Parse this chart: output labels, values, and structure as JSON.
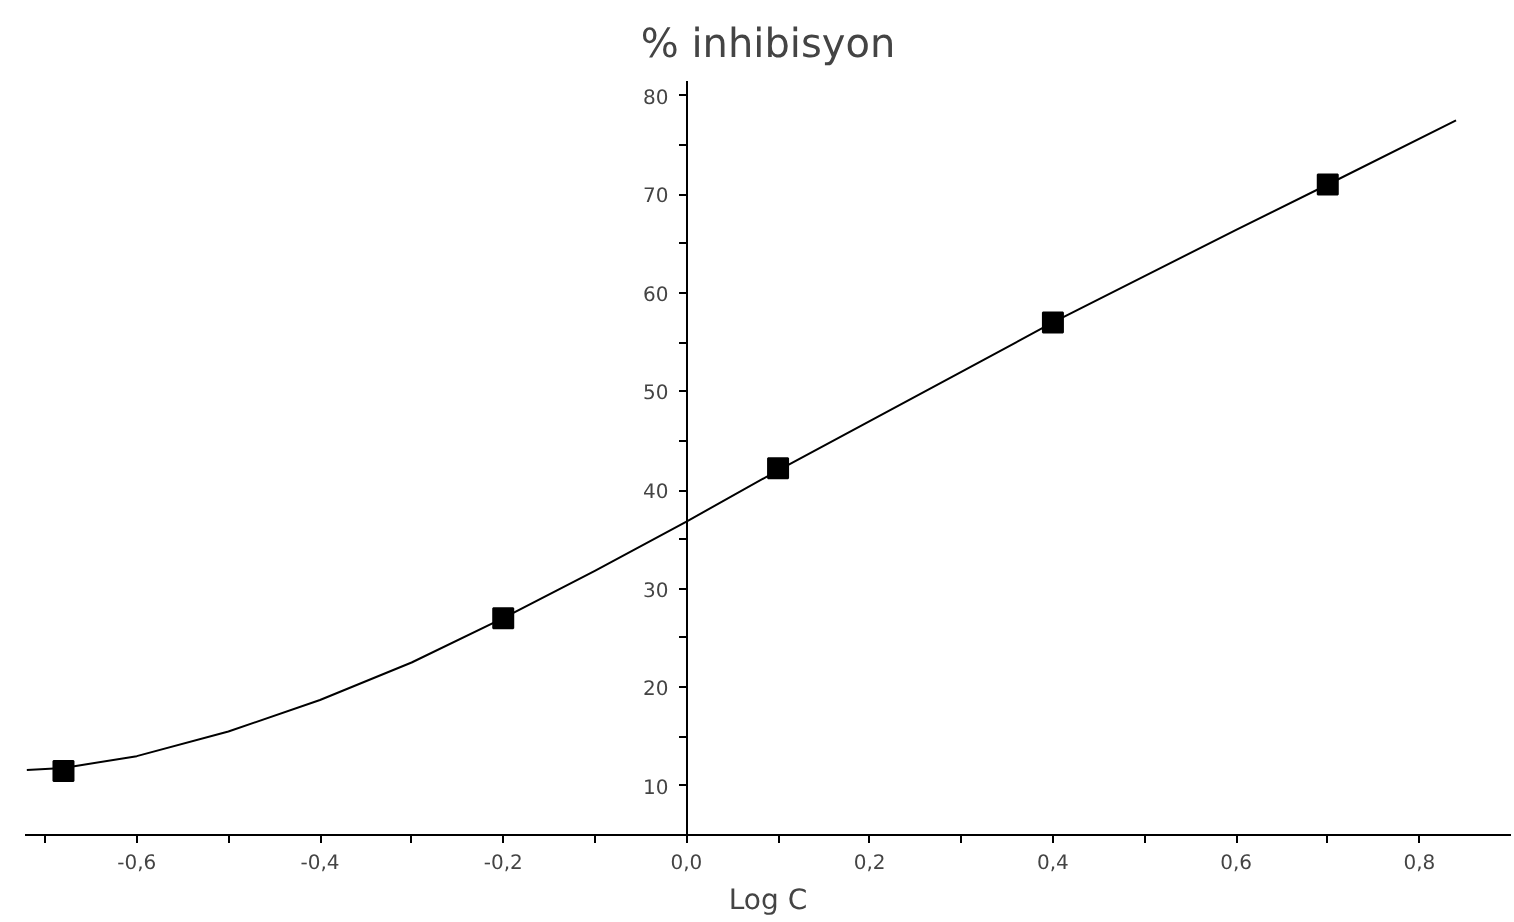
{
  "chart_data": {
    "type": "line",
    "ylabel": "% inhibisyon",
    "xlabel": "Log C",
    "xlim": [
      -0.722,
      0.9
    ],
    "ylim": [
      5,
      81.5
    ],
    "xticks": [
      {
        "value": -0.7,
        "label": null
      },
      {
        "value": -0.6,
        "label": "-0,6"
      },
      {
        "value": -0.5,
        "label": null
      },
      {
        "value": -0.4,
        "label": "-0,4"
      },
      {
        "value": -0.3,
        "label": null
      },
      {
        "value": -0.2,
        "label": "-0,2"
      },
      {
        "value": -0.1,
        "label": null
      },
      {
        "value": 0,
        "label": "0,0"
      },
      {
        "value": 0.1,
        "label": null
      },
      {
        "value": 0.2,
        "label": "0,2"
      },
      {
        "value": 0.3,
        "label": null
      },
      {
        "value": 0.4,
        "label": "0,4"
      },
      {
        "value": 0.5,
        "label": null
      },
      {
        "value": 0.6,
        "label": "0,6"
      },
      {
        "value": 0.7,
        "label": null
      },
      {
        "value": 0.8,
        "label": "0,8"
      }
    ],
    "yticks": [
      10,
      {
        "value": 15,
        "label": null
      },
      20,
      {
        "value": 25,
        "label": null
      },
      30,
      {
        "value": 35,
        "label": null
      },
      40,
      {
        "value": 45,
        "label": null
      },
      50,
      {
        "value": 55,
        "label": null
      },
      60,
      {
        "value": 65,
        "label": null
      },
      70,
      {
        "value": 75,
        "label": null
      },
      80
    ],
    "grid": false,
    "series": [
      {
        "color": "#000000",
        "marker": "none",
        "line_style": "solid",
        "x": [
          -0.72,
          -0.68,
          -0.6,
          -0.5,
          -0.4,
          -0.3,
          -0.2,
          -0.1,
          0.0,
          0.1,
          0.2,
          0.3,
          0.4,
          0.5,
          0.6,
          0.7,
          0.84
        ],
        "values": [
          11.6,
          11.8,
          13.0,
          15.5,
          18.7,
          22.5,
          27.0,
          31.8,
          36.8,
          42.0,
          47.0,
          52.0,
          57.0,
          61.7,
          66.4,
          71.0,
          77.5
        ]
      },
      {
        "type": "scatter",
        "color": "#000000",
        "marker": "square",
        "x": [
          -0.68,
          -0.2,
          0.1,
          0.4,
          0.7
        ],
        "values": [
          11.5,
          27,
          42.2,
          57,
          71
        ]
      }
    ]
  }
}
